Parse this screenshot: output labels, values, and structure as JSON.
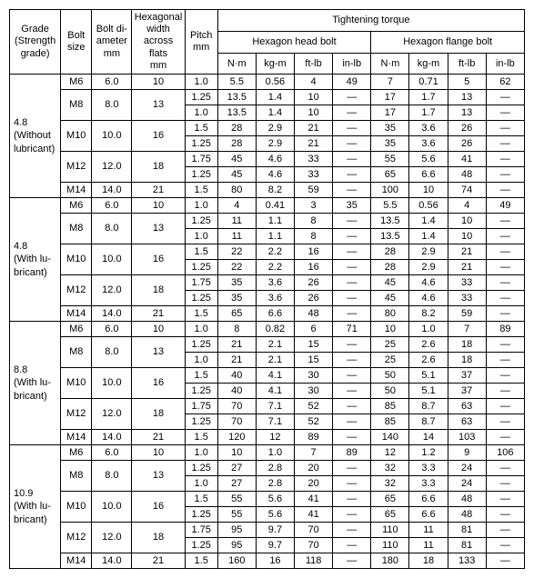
{
  "headers": {
    "grade": "Grade\n(Strength\ngrade)",
    "bolt_size": "Bolt\nsize",
    "bolt_dia": "Bolt di-\nameter\nmm",
    "hex_width": "Hexagonal\nwidth\nacross flats\nmm",
    "pitch": "Pitch\nmm",
    "tt": "Tightening torque",
    "hhb": "Hexagon head bolt",
    "hfb": "Hexagon flange bolt",
    "nm": "N·m",
    "kgm": "kg-m",
    "ftlb": "ft-lb",
    "inlb": "in-lb"
  },
  "groups": [
    {
      "label": "4.8\n(Without\nlubricant)",
      "bolts": [
        {
          "size": "M6",
          "dia": "6.0",
          "hex": "10",
          "rows": [
            {
              "pitch": "1.0",
              "h": [
                "5.5",
                "0.56",
                "4",
                "49"
              ],
              "f": [
                "7",
                "0.71",
                "5",
                "62"
              ]
            }
          ]
        },
        {
          "size": "M8",
          "dia": "8.0",
          "hex": "13",
          "rows": [
            {
              "pitch": "1.25",
              "h": [
                "13.5",
                "1.4",
                "10",
                "—"
              ],
              "f": [
                "17",
                "1.7",
                "13",
                "—"
              ]
            },
            {
              "pitch": "1.0",
              "h": [
                "13.5",
                "1.4",
                "10",
                "—"
              ],
              "f": [
                "17",
                "1.7",
                "13",
                "—"
              ]
            }
          ]
        },
        {
          "size": "M10",
          "dia": "10.0",
          "hex": "16",
          "rows": [
            {
              "pitch": "1.5",
              "h": [
                "28",
                "2.9",
                "21",
                "—"
              ],
              "f": [
                "35",
                "3.6",
                "26",
                "—"
              ]
            },
            {
              "pitch": "1.25",
              "h": [
                "28",
                "2.9",
                "21",
                "—"
              ],
              "f": [
                "35",
                "3.6",
                "26",
                "—"
              ]
            }
          ]
        },
        {
          "size": "M12",
          "dia": "12.0",
          "hex": "18",
          "rows": [
            {
              "pitch": "1.75",
              "h": [
                "45",
                "4.6",
                "33",
                "—"
              ],
              "f": [
                "55",
                "5.6",
                "41",
                "—"
              ]
            },
            {
              "pitch": "1.25",
              "h": [
                "45",
                "4.6",
                "33",
                "—"
              ],
              "f": [
                "65",
                "6.6",
                "48",
                "—"
              ]
            }
          ]
        },
        {
          "size": "M14",
          "dia": "14.0",
          "hex": "21",
          "rows": [
            {
              "pitch": "1.5",
              "h": [
                "80",
                "8.2",
                "59",
                "—"
              ],
              "f": [
                "100",
                "10",
                "74",
                "—"
              ]
            }
          ]
        }
      ]
    },
    {
      "label": "4.8\n(With lu-\nbricant)",
      "bolts": [
        {
          "size": "M6",
          "dia": "6.0",
          "hex": "10",
          "rows": [
            {
              "pitch": "1.0",
              "h": [
                "4",
                "0.41",
                "3",
                "35"
              ],
              "f": [
                "5.5",
                "0.56",
                "4",
                "49"
              ]
            }
          ]
        },
        {
          "size": "M8",
          "dia": "8.0",
          "hex": "13",
          "rows": [
            {
              "pitch": "1.25",
              "h": [
                "11",
                "1.1",
                "8",
                "—"
              ],
              "f": [
                "13.5",
                "1.4",
                "10",
                "—"
              ]
            },
            {
              "pitch": "1.0",
              "h": [
                "11",
                "1.1",
                "8",
                "—"
              ],
              "f": [
                "13.5",
                "1.4",
                "10",
                "—"
              ]
            }
          ]
        },
        {
          "size": "M10",
          "dia": "10.0",
          "hex": "16",
          "rows": [
            {
              "pitch": "1.5",
              "h": [
                "22",
                "2.2",
                "16",
                "—"
              ],
              "f": [
                "28",
                "2.9",
                "21",
                "—"
              ]
            },
            {
              "pitch": "1.25",
              "h": [
                "22",
                "2.2",
                "16",
                "—"
              ],
              "f": [
                "28",
                "2.9",
                "21",
                "—"
              ]
            }
          ]
        },
        {
          "size": "M12",
          "dia": "12.0",
          "hex": "18",
          "rows": [
            {
              "pitch": "1.75",
              "h": [
                "35",
                "3.6",
                "26",
                "—"
              ],
              "f": [
                "45",
                "4.6",
                "33",
                "—"
              ]
            },
            {
              "pitch": "1.25",
              "h": [
                "35",
                "3.6",
                "26",
                "—"
              ],
              "f": [
                "45",
                "4.6",
                "33",
                "—"
              ]
            }
          ]
        },
        {
          "size": "M14",
          "dia": "14.0",
          "hex": "21",
          "rows": [
            {
              "pitch": "1.5",
              "h": [
                "65",
                "6.6",
                "48",
                "—"
              ],
              "f": [
                "80",
                "8.2",
                "59",
                "—"
              ]
            }
          ]
        }
      ]
    },
    {
      "label": "8.8\n(With lu-\nbricant)",
      "bolts": [
        {
          "size": "M6",
          "dia": "6.0",
          "hex": "10",
          "rows": [
            {
              "pitch": "1.0",
              "h": [
                "8",
                "0.82",
                "6",
                "71"
              ],
              "f": [
                "10",
                "1.0",
                "7",
                "89"
              ]
            }
          ]
        },
        {
          "size": "M8",
          "dia": "8.0",
          "hex": "13",
          "rows": [
            {
              "pitch": "1.25",
              "h": [
                "21",
                "2.1",
                "15",
                "—"
              ],
              "f": [
                "25",
                "2.6",
                "18",
                "—"
              ]
            },
            {
              "pitch": "1.0",
              "h": [
                "21",
                "2.1",
                "15",
                "—"
              ],
              "f": [
                "25",
                "2.6",
                "18",
                "—"
              ]
            }
          ]
        },
        {
          "size": "M10",
          "dia": "10.0",
          "hex": "16",
          "rows": [
            {
              "pitch": "1.5",
              "h": [
                "40",
                "4.1",
                "30",
                "—"
              ],
              "f": [
                "50",
                "5.1",
                "37",
                "—"
              ]
            },
            {
              "pitch": "1.25",
              "h": [
                "40",
                "4.1",
                "30",
                "—"
              ],
              "f": [
                "50",
                "5.1",
                "37",
                "—"
              ]
            }
          ]
        },
        {
          "size": "M12",
          "dia": "12.0",
          "hex": "18",
          "rows": [
            {
              "pitch": "1.75",
              "h": [
                "70",
                "7.1",
                "52",
                "—"
              ],
              "f": [
                "85",
                "8.7",
                "63",
                "—"
              ]
            },
            {
              "pitch": "1.25",
              "h": [
                "70",
                "7.1",
                "52",
                "—"
              ],
              "f": [
                "85",
                "8.7",
                "63",
                "—"
              ]
            }
          ]
        },
        {
          "size": "M14",
          "dia": "14.0",
          "hex": "21",
          "rows": [
            {
              "pitch": "1.5",
              "h": [
                "120",
                "12",
                "89",
                "—"
              ],
              "f": [
                "140",
                "14",
                "103",
                "—"
              ]
            }
          ]
        }
      ]
    },
    {
      "label": "10.9\n(With lu-\nbricant)",
      "bolts": [
        {
          "size": "M6",
          "dia": "6.0",
          "hex": "10",
          "rows": [
            {
              "pitch": "1.0",
              "h": [
                "10",
                "1.0",
                "7",
                "89"
              ],
              "f": [
                "12",
                "1.2",
                "9",
                "106"
              ]
            }
          ]
        },
        {
          "size": "M8",
          "dia": "8.0",
          "hex": "13",
          "rows": [
            {
              "pitch": "1.25",
              "h": [
                "27",
                "2.8",
                "20",
                "—"
              ],
              "f": [
                "32",
                "3.3",
                "24",
                "—"
              ]
            },
            {
              "pitch": "1.0",
              "h": [
                "27",
                "2.8",
                "20",
                "—"
              ],
              "f": [
                "32",
                "3.3",
                "24",
                "—"
              ]
            }
          ]
        },
        {
          "size": "M10",
          "dia": "10.0",
          "hex": "16",
          "rows": [
            {
              "pitch": "1.5",
              "h": [
                "55",
                "5.6",
                "41",
                "—"
              ],
              "f": [
                "65",
                "6.6",
                "48",
                "—"
              ]
            },
            {
              "pitch": "1.25",
              "h": [
                "55",
                "5.6",
                "41",
                "—"
              ],
              "f": [
                "65",
                "6.6",
                "48",
                "—"
              ]
            }
          ]
        },
        {
          "size": "M12",
          "dia": "12.0",
          "hex": "18",
          "rows": [
            {
              "pitch": "1.75",
              "h": [
                "95",
                "9.7",
                "70",
                "—"
              ],
              "f": [
                "110",
                "11",
                "81",
                "—"
              ]
            },
            {
              "pitch": "1.25",
              "h": [
                "95",
                "9.7",
                "70",
                "—"
              ],
              "f": [
                "110",
                "11",
                "81",
                "—"
              ]
            }
          ]
        },
        {
          "size": "M14",
          "dia": "14.0",
          "hex": "21",
          "rows": [
            {
              "pitch": "1.5",
              "h": [
                "160",
                "16",
                "118",
                "—"
              ],
              "f": [
                "180",
                "18",
                "133",
                "—"
              ]
            }
          ]
        }
      ]
    }
  ]
}
